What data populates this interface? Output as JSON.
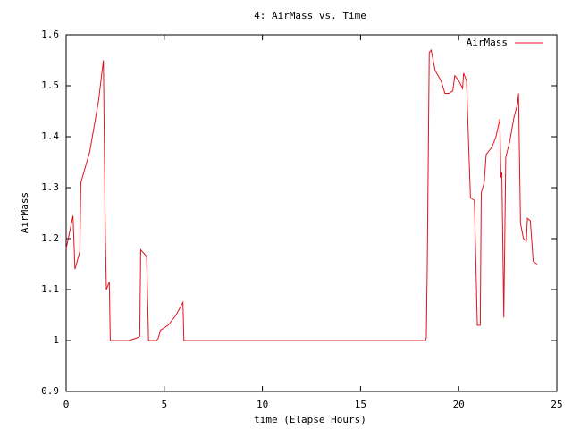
{
  "chart_data": {
    "type": "line",
    "title": "4: AirMass vs. Time",
    "xlabel": "time (Elapse Hours)",
    "ylabel": "AirMass",
    "xlim": [
      0,
      25
    ],
    "ylim": [
      0.9,
      1.6
    ],
    "xticks": [
      0,
      5,
      10,
      15,
      20,
      25
    ],
    "yticks": [
      0.9,
      1,
      1.1,
      1.2,
      1.3,
      1.4,
      1.5,
      1.6
    ],
    "grid": false,
    "legend": "top-right",
    "x": [
      0,
      0.35,
      0.45,
      0.7,
      0.75,
      1.2,
      1.65,
      1.9,
      2.0,
      2.05,
      2.2,
      2.25,
      3.2,
      3.6,
      3.75,
      3.8,
      4.1,
      4.2,
      4.6,
      4.7,
      4.8,
      5.2,
      5.6,
      5.95,
      6.0,
      18.3,
      18.35,
      18.4,
      18.5,
      18.6,
      18.8,
      19.1,
      19.3,
      19.5,
      19.7,
      19.8,
      20.0,
      20.2,
      20.25,
      20.4,
      20.45,
      20.6,
      20.8,
      20.95,
      21.1,
      21.15,
      21.3,
      21.4,
      21.7,
      21.9,
      22.1,
      22.15,
      22.2,
      22.3,
      22.4,
      22.6,
      22.8,
      23.0,
      23.05,
      23.15,
      23.3,
      23.45,
      23.5,
      23.65,
      23.8,
      24.0
    ],
    "series": [
      {
        "name": "AirMass",
        "color": "#e0141e",
        "values": [
          1.18,
          1.245,
          1.14,
          1.175,
          1.31,
          1.37,
          1.47,
          1.55,
          1.2,
          1.1,
          1.115,
          1.0,
          1.0,
          1.005,
          1.008,
          1.178,
          1.165,
          1.0,
          1.0,
          1.005,
          1.02,
          1.03,
          1.05,
          1.075,
          1.0,
          1.0,
          1.005,
          1.15,
          1.565,
          1.57,
          1.53,
          1.51,
          1.485,
          1.485,
          1.49,
          1.52,
          1.51,
          1.495,
          1.525,
          1.51,
          1.45,
          1.28,
          1.275,
          1.03,
          1.03,
          1.29,
          1.31,
          1.365,
          1.38,
          1.4,
          1.435,
          1.32,
          1.33,
          1.045,
          1.36,
          1.39,
          1.435,
          1.465,
          1.485,
          1.23,
          1.2,
          1.195,
          1.24,
          1.235,
          1.155,
          1.15
        ]
      }
    ]
  }
}
